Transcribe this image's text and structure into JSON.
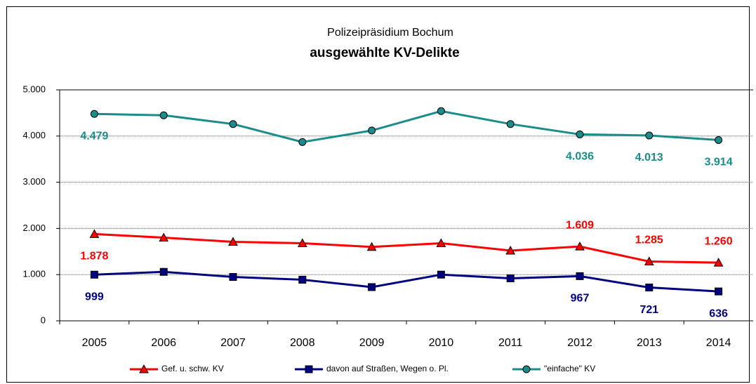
{
  "chart_data": {
    "type": "line",
    "title": "Polizeipräsidium Bochum",
    "subtitle": "ausgewählte KV-Delikte",
    "categories": [
      "2005",
      "2006",
      "2007",
      "2008",
      "2009",
      "2010",
      "2011",
      "2012",
      "2013",
      "2014"
    ],
    "ylim": [
      0,
      5000
    ],
    "yticks": [
      0,
      {
        "value": 1000,
        "label": "1.000"
      },
      {
        "value": 2000,
        "label": "2.000"
      },
      {
        "value": 3000,
        "label": "3.000"
      },
      {
        "value": 4000,
        "label": "4.000"
      },
      {
        "value": 5000,
        "label": "5.000"
      }
    ],
    "grid": true,
    "legend": "bottom",
    "series": [
      {
        "name": "Gef. u. schw. KV",
        "color": "#ff0000",
        "marker": "triangle",
        "values": [
          1878,
          1800,
          1710,
          1680,
          1600,
          1680,
          1520,
          1609,
          1285,
          1260
        ],
        "value_labels": [
          "1.878",
          null,
          null,
          null,
          null,
          null,
          null,
          "1.609",
          "1.285",
          "1.260"
        ]
      },
      {
        "name": "davon auf Straßen, Wegen o. Pl.",
        "color": "#000080",
        "marker": "square",
        "values": [
          999,
          1060,
          950,
          890,
          730,
          1000,
          920,
          967,
          721,
          636
        ],
        "value_labels": [
          "999",
          null,
          null,
          null,
          null,
          null,
          null,
          "967",
          "721",
          "636"
        ]
      },
      {
        "name": "\"einfache\" KV",
        "color": "#1a8c8c",
        "marker": "circle",
        "values": [
          4479,
          4450,
          4260,
          3870,
          4120,
          4540,
          4260,
          4036,
          4013,
          3914
        ],
        "value_labels": [
          "4.479",
          null,
          null,
          null,
          null,
          null,
          null,
          "4.036",
          "4.013",
          "3.914"
        ]
      }
    ]
  }
}
